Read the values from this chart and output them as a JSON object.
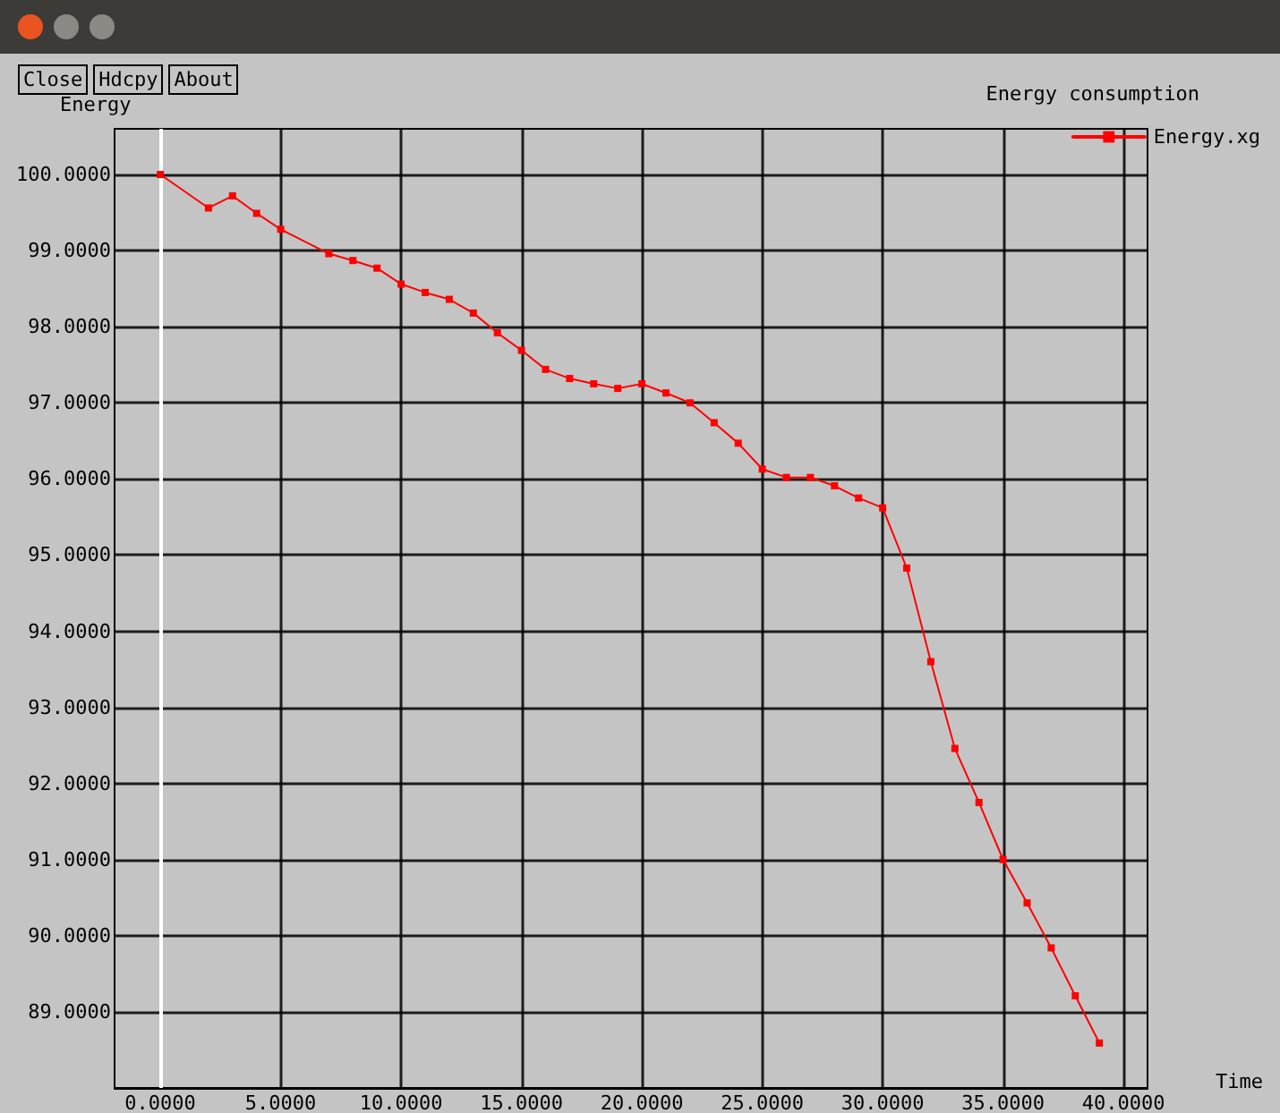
{
  "chart_data": {
    "type": "line",
    "title": "Energy consumption",
    "xlabel": "Time",
    "ylabel": "Energy",
    "annotations": [
      "Close",
      "Hdcpy",
      "About"
    ],
    "x": [
      0,
      2,
      3,
      4,
      5,
      7,
      8,
      9,
      10,
      11,
      12,
      13,
      14,
      15,
      16,
      17,
      18,
      19,
      20,
      21,
      22,
      23,
      24,
      25,
      26,
      27,
      28,
      29,
      30,
      31,
      32,
      33,
      34,
      35,
      36,
      37,
      38,
      39
    ],
    "series": [
      {
        "name": "Energy.xg",
        "color": "#ff0000",
        "values": [
          100,
          99.56,
          99.72,
          99.49,
          99.28,
          98.96,
          98.87,
          98.77,
          98.56,
          98.45,
          98.36,
          98.18,
          97.92,
          97.69,
          97.44,
          97.32,
          97.25,
          97.19,
          97.25,
          97.13,
          97.0,
          96.74,
          96.47,
          96.13,
          96.02,
          96.02,
          95.91,
          95.75,
          95.62,
          94.83,
          93.6,
          92.46,
          91.75,
          91.0,
          90.43,
          89.84,
          89.21,
          88.59
        ]
      }
    ],
    "xlim": [
      -1.9,
      41
    ],
    "ylim": [
      88,
      100.6
    ],
    "xticks": [
      {
        "value": 0,
        "label": "0.0000"
      },
      {
        "value": 5,
        "label": "5.0000"
      },
      {
        "value": 10,
        "label": "10.0000"
      },
      {
        "value": 15,
        "label": "15.0000"
      },
      {
        "value": 20,
        "label": "20.0000"
      },
      {
        "value": 25,
        "label": "25.0000"
      },
      {
        "value": 30,
        "label": "30.0000"
      },
      {
        "value": 35,
        "label": "35.0000"
      },
      {
        "value": 40,
        "label": "40.0000"
      }
    ],
    "yticks": [
      {
        "value": 89,
        "label": "89.0000"
      },
      {
        "value": 90,
        "label": "90.0000"
      },
      {
        "value": 91,
        "label": "91.0000"
      },
      {
        "value": 92,
        "label": "92.0000"
      },
      {
        "value": 93,
        "label": "93.0000"
      },
      {
        "value": 94,
        "label": "94.0000"
      },
      {
        "value": 95,
        "label": "95.0000"
      },
      {
        "value": 96,
        "label": "96.0000"
      },
      {
        "value": 97,
        "label": "97.0000"
      },
      {
        "value": 98,
        "label": "98.0000"
      },
      {
        "value": 99,
        "label": "99.0000"
      },
      {
        "value": 100,
        "label": "100.0000"
      }
    ],
    "ref_lines": [
      {
        "axis": "x",
        "value": 0,
        "label": null,
        "color": "#ffffff"
      }
    ],
    "grid": true,
    "legend": "top right",
    "marker": "square",
    "line_style": "solid"
  }
}
